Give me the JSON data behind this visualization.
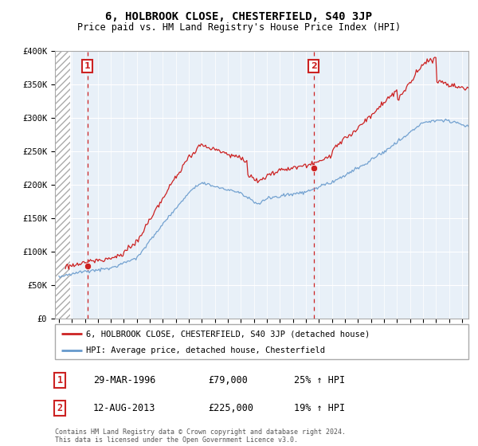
{
  "title": "6, HOLBROOK CLOSE, CHESTERFIELD, S40 3JP",
  "subtitle": "Price paid vs. HM Land Registry's House Price Index (HPI)",
  "legend_line1": "6, HOLBROOK CLOSE, CHESTERFIELD, S40 3JP (detached house)",
  "legend_line2": "HPI: Average price, detached house, Chesterfield",
  "table_rows": [
    {
      "num": "1",
      "date": "29-MAR-1996",
      "price": "£79,000",
      "hpi": "25% ↑ HPI"
    },
    {
      "num": "2",
      "date": "12-AUG-2013",
      "price": "£225,000",
      "hpi": "19% ↑ HPI"
    }
  ],
  "footer": "Contains HM Land Registry data © Crown copyright and database right 2024.\nThis data is licensed under the Open Government Licence v3.0.",
  "red_line_color": "#cc2222",
  "blue_line_color": "#6699cc",
  "marker_color": "#cc2222",
  "dashed_line_color": "#cc2222",
  "plot_bg_color": "#e8f0f8",
  "ylim": [
    0,
    400000
  ],
  "yticks": [
    0,
    50000,
    100000,
    150000,
    200000,
    250000,
    300000,
    350000,
    400000
  ],
  "ytick_labels": [
    "£0",
    "£50K",
    "£100K",
    "£150K",
    "£200K",
    "£250K",
    "£300K",
    "£350K",
    "£400K"
  ],
  "sale1_year": 1996.2,
  "sale1_price": 79000,
  "sale2_year": 2013.6,
  "sale2_price": 225000,
  "xmin": 1993.7,
  "xmax": 2025.5,
  "hatch_end": 1994.85
}
